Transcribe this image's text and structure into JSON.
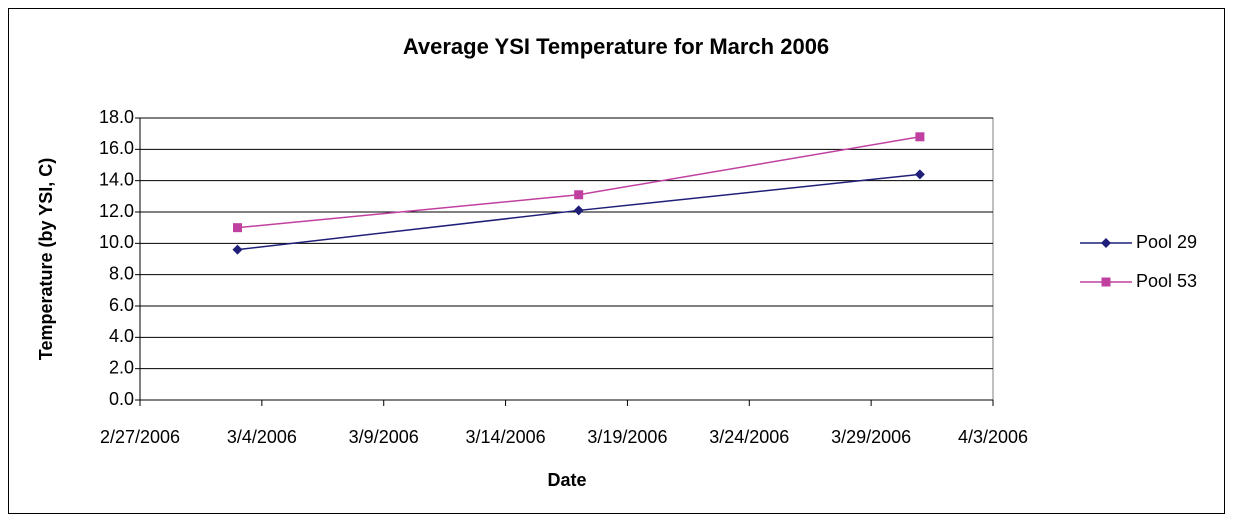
{
  "chart_data": {
    "type": "line",
    "title": "Average YSI Temperature for March 2006",
    "x_label": "Date",
    "y_label": "Temperature (by YSI, C)",
    "x": [
      "2006-03-03",
      "2006-03-17",
      "2006-03-31"
    ],
    "series": [
      {
        "name": "Pool 29",
        "color": "#1f1f7a",
        "marker": "diamond",
        "values": [
          9.6,
          12.1,
          14.4
        ]
      },
      {
        "name": "Pool 53",
        "color": "#c040a0",
        "marker": "square",
        "values": [
          11.0,
          13.1,
          16.8
        ]
      }
    ],
    "xlim": [
      "2006-02-27",
      "2006-04-03"
    ],
    "xticks": [
      {
        "value": "2006-02-27",
        "label": "2/27/2006"
      },
      {
        "value": "2006-03-04",
        "label": "3/4/2006"
      },
      {
        "value": "2006-03-09",
        "label": "3/9/2006"
      },
      {
        "value": "2006-03-14",
        "label": "3/14/2006"
      },
      {
        "value": "2006-03-19",
        "label": "3/19/2006"
      },
      {
        "value": "2006-03-24",
        "label": "3/24/2006"
      },
      {
        "value": "2006-03-29",
        "label": "3/29/2006"
      },
      {
        "value": "2006-04-03",
        "label": "4/3/2006"
      }
    ],
    "ylim": [
      0,
      18
    ],
    "yticks": [
      {
        "value": 0,
        "label": "0.0"
      },
      {
        "value": 2,
        "label": "2.0"
      },
      {
        "value": 4,
        "label": "4.0"
      },
      {
        "value": 6,
        "label": "6.0"
      },
      {
        "value": 8,
        "label": "8.0"
      },
      {
        "value": 10,
        "label": "10.0"
      },
      {
        "value": 12,
        "label": "12.0"
      },
      {
        "value": 14,
        "label": "14.0"
      },
      {
        "value": 16,
        "label": "16.0"
      },
      {
        "value": 18,
        "label": "18.0"
      }
    ],
    "grid": true,
    "legend": "right"
  }
}
